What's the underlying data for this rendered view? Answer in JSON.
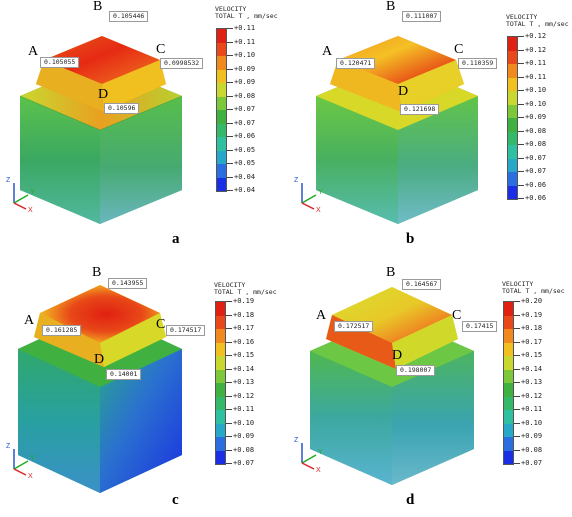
{
  "axis": {
    "x": "X",
    "y": "Y",
    "z": "Z"
  },
  "palette": [
    "#1a2ee6",
    "#2a6ee0",
    "#28a8c8",
    "#2ec0a0",
    "#34b86a",
    "#40b040",
    "#7cc83a",
    "#c8d830",
    "#f0c020",
    "#f08a1e",
    "#e8481a",
    "#e02012"
  ],
  "panels": [
    {
      "label": "a",
      "corners": {
        "A": "A",
        "B": "B",
        "C": "C",
        "D": "D"
      },
      "tags": {
        "A": "0.105055",
        "B": "0.105446",
        "C": "0.0998532",
        "D": "0.10596"
      },
      "legend_title_1": "VELOCITY",
      "legend_title_2": "TOTAL T , mm/sec",
      "legend_values": [
        "+0.11",
        "+0.11",
        "+0.10",
        "+0.09",
        "+0.09",
        "+0.08",
        "+0.07",
        "+0.07",
        "+0.06",
        "+0.05",
        "+0.05",
        "+0.04",
        "+0.04"
      ]
    },
    {
      "label": "b",
      "corners": {
        "A": "A",
        "B": "B",
        "C": "C",
        "D": "D"
      },
      "tags": {
        "A": "0.120471",
        "B": "0.111007",
        "C": "0.110359",
        "D": "0.121698"
      },
      "legend_title_1": "VELOCITY",
      "legend_title_2": "TOTAL T , mm/sec",
      "legend_values": [
        "+0.12",
        "+0.12",
        "+0.11",
        "+0.11",
        "+0.10",
        "+0.10",
        "+0.09",
        "+0.08",
        "+0.08",
        "+0.07",
        "+0.07",
        "+0.06",
        "+0.06"
      ]
    },
    {
      "label": "c",
      "corners": {
        "A": "A",
        "B": "B",
        "C": "C",
        "D": "D"
      },
      "tags": {
        "A": "0.161285",
        "B": "0.143955",
        "C": "0.174517",
        "D": "0.14001"
      },
      "legend_title_1": "VELOCITY",
      "legend_title_2": "TOTAL T , mm/sec",
      "legend_values": [
        "+0.19",
        "+0.18",
        "+0.17",
        "+0.16",
        "+0.15",
        "+0.14",
        "+0.13",
        "+0.12",
        "+0.11",
        "+0.10",
        "+0.09",
        "+0.08",
        "+0.07"
      ]
    },
    {
      "label": "d",
      "corners": {
        "A": "A",
        "B": "B",
        "C": "C",
        "D": "D"
      },
      "tags": {
        "A": "0.172517",
        "B": "0.164567",
        "C": "0.17415",
        "D": "0.198007"
      },
      "legend_title_1": "VELOCITY",
      "legend_title_2": "TOTAL T , mm/sec",
      "legend_values": [
        "+0.20",
        "+0.19",
        "+0.18",
        "+0.17",
        "+0.15",
        "+0.14",
        "+0.13",
        "+0.12",
        "+0.11",
        "+0.10",
        "+0.09",
        "+0.08",
        "+0.07"
      ]
    }
  ]
}
